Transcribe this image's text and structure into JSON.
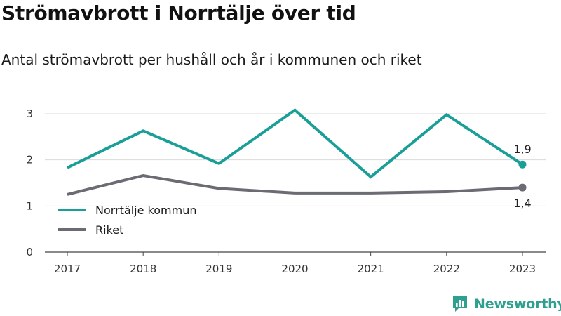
{
  "header": {
    "title": "Strömavbrott i Norrtälje över tid",
    "subtitle": "Antal strömavbrott per hushåll och år i kommunen och riket"
  },
  "chart_data": {
    "type": "line",
    "x": [
      2017,
      2018,
      2019,
      2020,
      2021,
      2022,
      2023
    ],
    "ylim": [
      0,
      3
    ],
    "yticks": [
      0,
      1,
      2,
      3
    ],
    "grid": true,
    "legend_position": "bottom-left",
    "series": [
      {
        "name": "Norrtälje kommun",
        "color": "#1a9e98",
        "values": [
          1.83,
          2.63,
          1.92,
          3.08,
          1.63,
          2.98,
          1.9
        ],
        "end_label": "1,9"
      },
      {
        "name": "Riket",
        "color": "#6b6b74",
        "values": [
          1.25,
          1.66,
          1.38,
          1.28,
          1.28,
          1.31,
          1.4
        ],
        "end_label": "1,4"
      }
    ]
  },
  "logo": {
    "text": "Newsworthy",
    "color": "#2fa08f"
  }
}
